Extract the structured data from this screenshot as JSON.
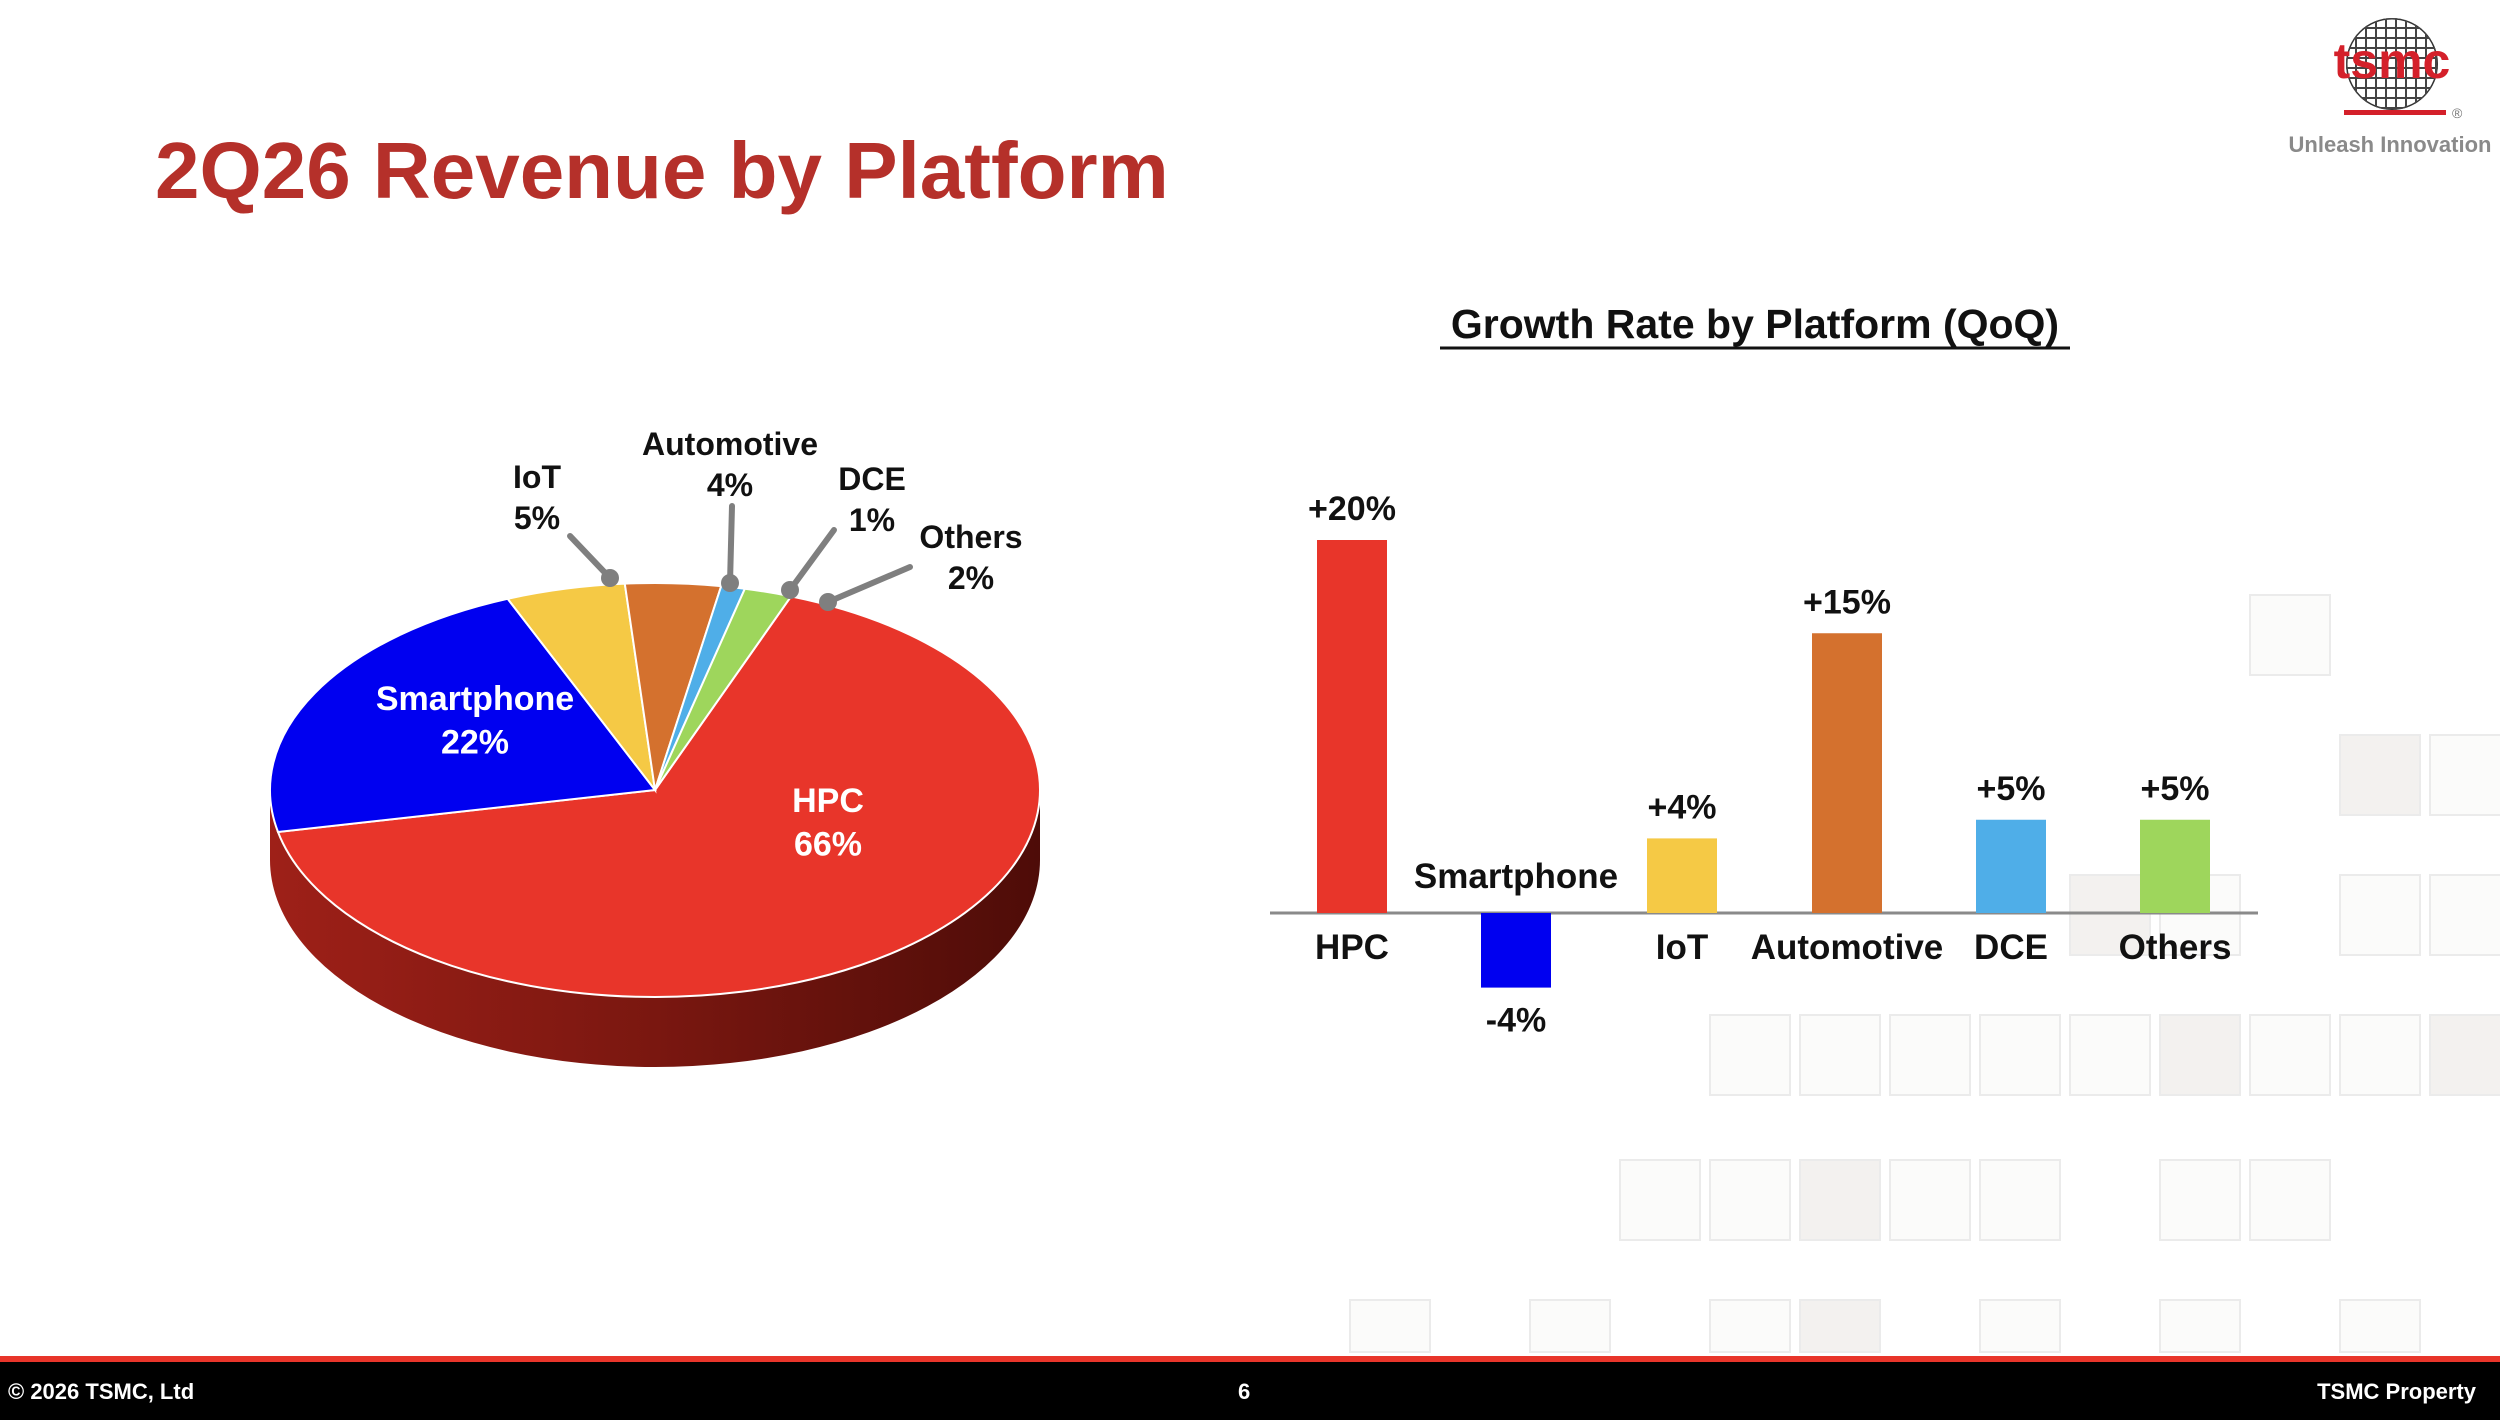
{
  "slide": {
    "title": "2Q26 Revenue by Platform",
    "logo_text": "tsmc",
    "logo_registered": "®",
    "tagline": "Unleash Innovation",
    "footer_left": "© 2026 TSMC, Ltd",
    "footer_page": "6",
    "footer_right": "TSMC Property"
  },
  "colors": {
    "title": "#b5302a",
    "hpc": "#e8352a",
    "smartphone": "#0000f0",
    "iot": "#f5c945",
    "automotive": "#d4712e",
    "dce": "#4faee8",
    "others": "#9ed65c",
    "footer_bg": "#000000",
    "footer_rule": "#e8352a"
  },
  "chart_data": [
    {
      "type": "pie",
      "title": "",
      "slices": [
        {
          "name": "HPC",
          "value": 66,
          "label": "66%",
          "color": "#e8352a"
        },
        {
          "name": "Smartphone",
          "value": 22,
          "label": "22%",
          "color": "#0000f0"
        },
        {
          "name": "IoT",
          "value": 5,
          "label": "5%",
          "color": "#f5c945"
        },
        {
          "name": "Automotive",
          "value": 4,
          "label": "4%",
          "color": "#d4712e"
        },
        {
          "name": "DCE",
          "value": 1,
          "label": "1%",
          "color": "#4faee8"
        },
        {
          "name": "Others",
          "value": 2,
          "label": "2%",
          "color": "#9ed65c"
        }
      ]
    },
    {
      "type": "bar",
      "title": "Growth Rate by Platform (QoQ)",
      "categories": [
        "HPC",
        "Smartphone",
        "IoT",
        "Automotive",
        "DCE",
        "Others"
      ],
      "values": [
        20,
        -4,
        4,
        15,
        5,
        5
      ],
      "value_labels": [
        "+20%",
        "-4%",
        "+4%",
        "+15%",
        "+5%",
        "+5%"
      ],
      "colors": [
        "#e8352a",
        "#0000f0",
        "#f5c945",
        "#d4712e",
        "#4faee8",
        "#9ed65c"
      ],
      "ylim": [
        -4,
        20
      ]
    }
  ]
}
